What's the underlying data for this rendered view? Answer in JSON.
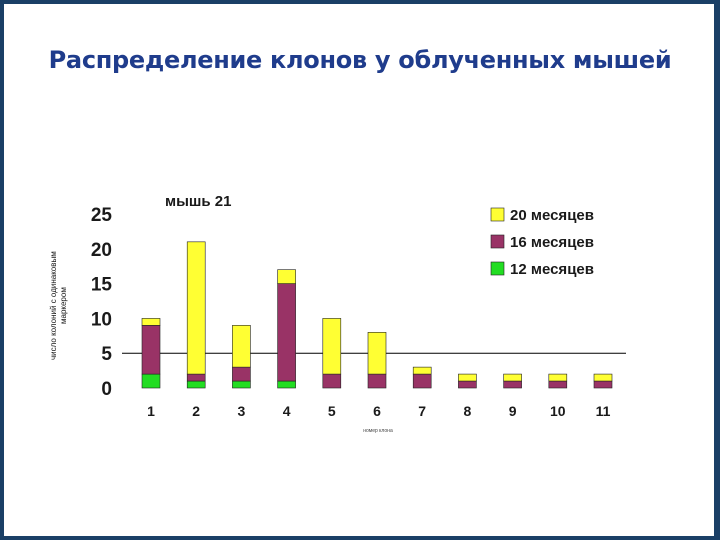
{
  "slide": {
    "title": "Распределение клонов у облученных мышей"
  },
  "chart_data": {
    "type": "bar",
    "stacked": true,
    "title": "мышь 21",
    "ylabel_lines": [
      "число колоний с одинаковым",
      "маркером"
    ],
    "xlabel": "номер клона",
    "categories": [
      "1",
      "2",
      "3",
      "4",
      "5",
      "6",
      "7",
      "8",
      "9",
      "10",
      "11"
    ],
    "series": [
      {
        "name": "12 месяцев",
        "color": "#22dd22",
        "values": [
          2,
          1,
          1,
          1,
          0,
          0,
          0,
          0,
          0,
          0,
          0
        ]
      },
      {
        "name": "16 месяцев",
        "color": "#993366",
        "values": [
          7,
          1,
          2,
          14,
          2,
          2,
          2,
          1,
          1,
          1,
          1
        ]
      },
      {
        "name": "20 месяцев",
        "color": "#ffff33",
        "values": [
          1,
          19,
          6,
          2,
          8,
          6,
          1,
          1,
          1,
          1,
          1
        ]
      }
    ],
    "ylim": [
      0,
      25
    ],
    "yticks": [
      "0",
      "5",
      "10",
      "15",
      "20",
      "25"
    ],
    "legend_position": "top-right",
    "grid": false
  }
}
